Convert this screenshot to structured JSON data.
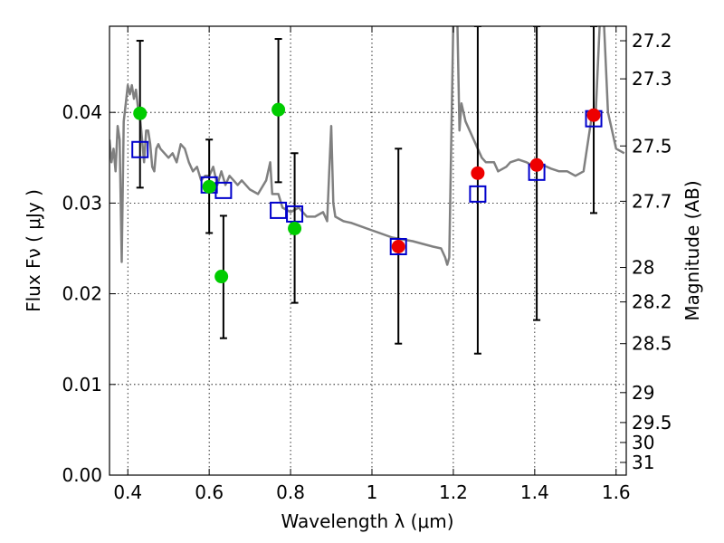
{
  "chart_data": {
    "type": "scatter",
    "xlabel": "Wavelength  λ (μm)",
    "ylabel": "Flux  Fν  ( μJy )",
    "y2label": "Magnitude (AB)",
    "xlim": [
      0.355,
      1.625
    ],
    "ylim": [
      0.0,
      0.0495
    ],
    "grid": true,
    "grid_style": "dotted",
    "x_ticks": [
      0.4,
      0.6,
      0.8,
      1.0,
      1.2,
      1.4,
      1.6
    ],
    "x_tick_labels": [
      "0.4",
      "0.6",
      "0.8",
      "1",
      "1.2",
      "1.4",
      "1.6"
    ],
    "y_ticks": [
      0.0,
      0.01,
      0.02,
      0.03,
      0.04
    ],
    "y_tick_labels": [
      "0.00",
      "0.01",
      "0.02",
      "0.03",
      "0.04"
    ],
    "y2_ticks": [
      {
        "label": "27.2",
        "flux": 0.0479
      },
      {
        "label": "27.3",
        "flux": 0.0437
      },
      {
        "label": "27.5",
        "flux": 0.0363
      },
      {
        "label": "27.7",
        "flux": 0.0302
      },
      {
        "label": "28",
        "flux": 0.0229
      },
      {
        "label": "28.2",
        "flux": 0.0191
      },
      {
        "label": "28.5",
        "flux": 0.0145
      },
      {
        "label": "29",
        "flux": 0.0091
      },
      {
        "label": "29.5",
        "flux": 0.0058
      },
      {
        "label": "30",
        "flux": 0.0036
      },
      {
        "label": "31",
        "flux": 0.0014
      }
    ],
    "colors": {
      "model_line": "#808080",
      "green_points": "#00cc00",
      "red_points": "#ee0000",
      "model_squares": "#0000cc",
      "error_bars": "#000000"
    },
    "model_sed": {
      "name": "",
      "x": [
        0.355,
        0.36,
        0.365,
        0.37,
        0.375,
        0.38,
        0.385,
        0.39,
        0.395,
        0.4,
        0.405,
        0.41,
        0.415,
        0.42,
        0.425,
        0.43,
        0.435,
        0.44,
        0.445,
        0.45,
        0.455,
        0.46,
        0.465,
        0.47,
        0.475,
        0.48,
        0.49,
        0.5,
        0.51,
        0.52,
        0.53,
        0.54,
        0.55,
        0.56,
        0.57,
        0.58,
        0.59,
        0.6,
        0.61,
        0.62,
        0.63,
        0.64,
        0.65,
        0.66,
        0.67,
        0.68,
        0.7,
        0.72,
        0.74,
        0.75,
        0.755,
        0.76,
        0.77,
        0.78,
        0.8,
        0.82,
        0.84,
        0.86,
        0.88,
        0.89,
        0.895,
        0.9,
        0.905,
        0.91,
        0.93,
        0.95,
        1.0,
        1.05,
        1.1,
        1.15,
        1.17,
        1.18,
        1.185,
        1.19,
        1.2,
        1.21,
        1.215,
        1.22,
        1.23,
        1.24,
        1.25,
        1.26,
        1.27,
        1.28,
        1.3,
        1.31,
        1.33,
        1.34,
        1.36,
        1.38,
        1.4,
        1.42,
        1.44,
        1.46,
        1.48,
        1.5,
        1.52,
        1.54,
        1.55,
        1.56,
        1.57,
        1.58,
        1.6,
        1.62
      ],
      "y": [
        0.037,
        0.0345,
        0.036,
        0.0335,
        0.0385,
        0.037,
        0.0235,
        0.039,
        0.041,
        0.043,
        0.042,
        0.043,
        0.0415,
        0.0425,
        0.0405,
        0.0395,
        0.037,
        0.0345,
        0.038,
        0.038,
        0.0365,
        0.034,
        0.0335,
        0.036,
        0.0365,
        0.036,
        0.0355,
        0.035,
        0.0355,
        0.0345,
        0.0365,
        0.036,
        0.0345,
        0.0335,
        0.034,
        0.0325,
        0.033,
        0.033,
        0.034,
        0.032,
        0.0335,
        0.032,
        0.033,
        0.0325,
        0.032,
        0.0325,
        0.0315,
        0.031,
        0.0325,
        0.0345,
        0.031,
        0.031,
        0.031,
        0.0295,
        0.029,
        0.0295,
        0.0285,
        0.0285,
        0.029,
        0.028,
        0.0335,
        0.0385,
        0.03,
        0.0285,
        0.028,
        0.0278,
        0.027,
        0.0262,
        0.0258,
        0.0252,
        0.025,
        0.024,
        0.0232,
        0.024,
        0.05,
        0.05,
        0.038,
        0.041,
        0.039,
        0.038,
        0.037,
        0.036,
        0.035,
        0.0345,
        0.0345,
        0.0335,
        0.034,
        0.0345,
        0.0348,
        0.0345,
        0.034,
        0.0342,
        0.0338,
        0.0335,
        0.0335,
        0.033,
        0.0335,
        0.0395,
        0.04,
        0.05,
        0.05,
        0.04,
        0.036,
        0.0355
      ]
    },
    "observed_green": {
      "name": "",
      "x": [
        0.43,
        0.6,
        0.63,
        0.77,
        0.81
      ],
      "y": [
        0.0399,
        0.0318,
        0.0219,
        0.0403,
        0.0272
      ]
    },
    "observed_red": {
      "name": "",
      "x": [
        1.065,
        1.26,
        1.405,
        1.545
      ],
      "y": [
        0.0252,
        0.0333,
        0.0342,
        0.0397
      ]
    },
    "model_photometry": {
      "name": "",
      "x": [
        0.43,
        0.6,
        0.635,
        0.77,
        0.81,
        1.065,
        1.26,
        1.405,
        1.545
      ],
      "y": [
        0.0359,
        0.032,
        0.0314,
        0.0292,
        0.0288,
        0.0252,
        0.031,
        0.0334,
        0.0393
      ]
    },
    "error_bars": [
      {
        "x": 0.43,
        "low": 0.0317,
        "high": 0.0479
      },
      {
        "x": 0.6,
        "low": 0.0267,
        "high": 0.037
      },
      {
        "x": 0.635,
        "low": 0.0151,
        "high": 0.0286
      },
      {
        "x": 0.77,
        "low": 0.0323,
        "high": 0.0481
      },
      {
        "x": 0.81,
        "low": 0.019,
        "high": 0.0355
      },
      {
        "x": 1.065,
        "low": 0.0145,
        "high": 0.036
      },
      {
        "x": 1.26,
        "low": 0.0134,
        "high": 0.0495
      },
      {
        "x": 1.405,
        "low": 0.0171,
        "high": 0.0495
      },
      {
        "x": 1.545,
        "low": 0.0289,
        "high": 0.0495
      }
    ]
  }
}
